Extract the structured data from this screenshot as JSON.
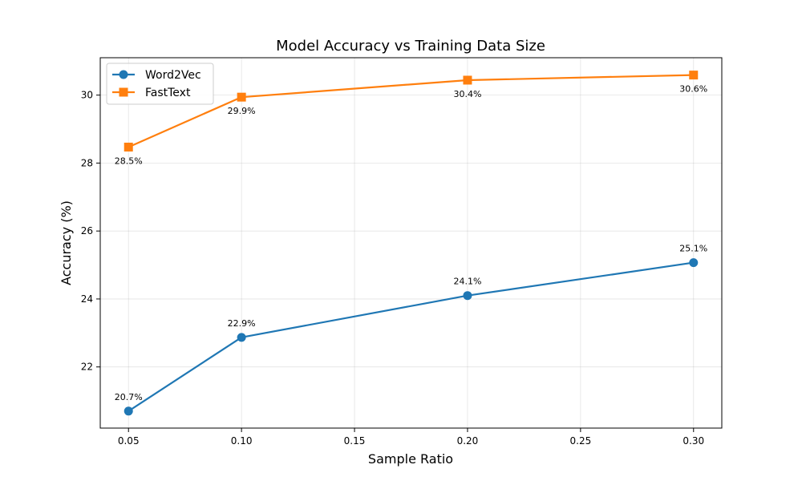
{
  "chart_data": {
    "type": "line",
    "title": "Model Accuracy vs Training Data Size",
    "xlabel": "Sample Ratio",
    "ylabel": "Accuracy (%)",
    "xlim": [
      0.0375,
      0.3125
    ],
    "ylim": [
      20.2,
      31.1
    ],
    "xticks": [
      0.05,
      0.1,
      0.15,
      0.2,
      0.25,
      0.3
    ],
    "xtick_labels": [
      "0.05",
      "0.10",
      "0.15",
      "0.20",
      "0.25",
      "0.30"
    ],
    "yticks": [
      22,
      24,
      26,
      28,
      30
    ],
    "ytick_labels": [
      "22",
      "24",
      "26",
      "28",
      "30"
    ],
    "grid": true,
    "legend_position": "top-left",
    "x": [
      0.05,
      0.1,
      0.2,
      0.3
    ],
    "series": [
      {
        "name": "Word2Vec",
        "color": "#1f77b4",
        "marker": "circle",
        "values": [
          20.7,
          22.87,
          24.1,
          25.07
        ],
        "labels": [
          "20.7%",
          "22.9%",
          "24.1%",
          "25.1%"
        ],
        "label_position": "above"
      },
      {
        "name": "FastText",
        "color": "#ff7f0e",
        "marker": "square",
        "values": [
          28.47,
          29.94,
          30.44,
          30.59
        ],
        "labels": [
          "28.5%",
          "29.9%",
          "30.4%",
          "30.6%"
        ],
        "label_position": "below"
      }
    ]
  }
}
